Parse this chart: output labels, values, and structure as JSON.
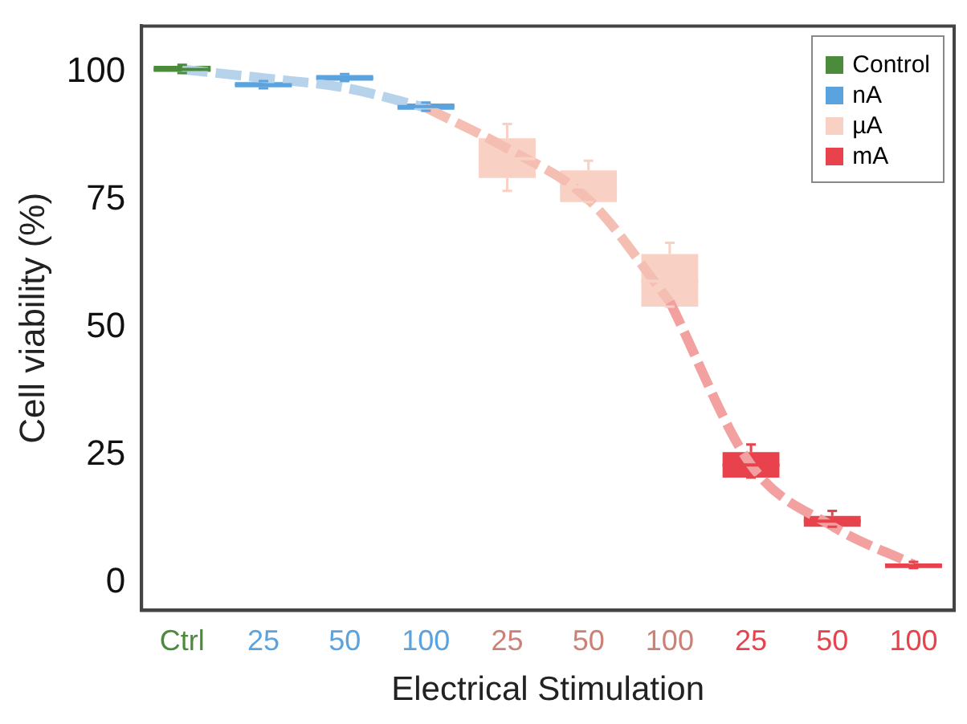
{
  "chart_data": {
    "type": "box",
    "xlabel": "Electrical Stimulation",
    "ylabel": "Cell viability (%)",
    "categories": [
      "Ctrl",
      "25",
      "50",
      "100",
      "25",
      "50",
      "100",
      "25",
      "50",
      "100"
    ],
    "ylim": [
      -5.5,
      109
    ],
    "yticks": [
      0,
      25,
      50,
      75,
      100
    ],
    "grid": false,
    "legend": "top right",
    "series": [
      {
        "name": "Control",
        "color": "#4b8b3b",
        "boxes": [
          {
            "low": 99.8,
            "q1": 100,
            "median": 100.5,
            "q3": 101.2,
            "high": 101.4
          },
          null,
          null,
          null,
          null,
          null,
          null,
          null,
          null,
          null
        ]
      },
      {
        "name": "nA",
        "color": "#5ba3de",
        "boxes": [
          null,
          {
            "low": 96.8,
            "q1": 97,
            "median": 97.5,
            "q3": 98,
            "high": 98.2
          },
          {
            "low": 98.2,
            "q1": 98.3,
            "median": 98.8,
            "q3": 99.4,
            "high": 99.6
          },
          {
            "low": 92.4,
            "q1": 92.6,
            "median": 93.2,
            "q3": 93.8,
            "high": 94
          },
          null,
          null,
          null,
          null,
          null,
          null
        ]
      },
      {
        "name": "µA",
        "color": "#f9d0c4",
        "boxes": [
          null,
          null,
          null,
          null,
          {
            "low": 76.7,
            "q1": 79.2,
            "median": 83,
            "q3": 87,
            "high": 89.8
          },
          {
            "low": 74.5,
            "q1": 74.5,
            "median": 77.5,
            "q3": 80.7,
            "high": 82.6
          },
          {
            "low": 54,
            "q1": 54,
            "median": 59,
            "q3": 64.3,
            "high": 66.5
          },
          null,
          null,
          null
        ]
      },
      {
        "name": "mA",
        "color": "#e8424c",
        "boxes": [
          null,
          null,
          null,
          null,
          null,
          null,
          null,
          {
            "low": 20.5,
            "q1": 20.5,
            "median": 23,
            "q3": 25.5,
            "high": 27
          },
          {
            "low": 10.9,
            "q1": 10.9,
            "median": 12,
            "q3": 13,
            "high": 14
          },
          {
            "low": 2.8,
            "q1": 2.8,
            "median": 3.2,
            "q3": 3.7,
            "high": 4
          }
        ]
      },
      {
        "type": "line",
        "line_style": "dashed",
        "marker": "none",
        "color": "#b7d3ec",
        "values": [
          100.5,
          98.8,
          96.9,
          93,
          null,
          null,
          null,
          null,
          null,
          null
        ]
      },
      {
        "type": "line",
        "line_style": "dashed",
        "marker": "none",
        "color": "#f4beb2",
        "values": [
          null,
          null,
          null,
          93,
          85,
          75,
          55,
          null,
          null,
          null
        ]
      },
      {
        "type": "line",
        "line_style": "dashed",
        "marker": "none",
        "color": "#f2a0a0",
        "values": [
          null,
          null,
          null,
          null,
          null,
          null,
          55,
          23,
          11,
          3.5
        ]
      }
    ]
  }
}
